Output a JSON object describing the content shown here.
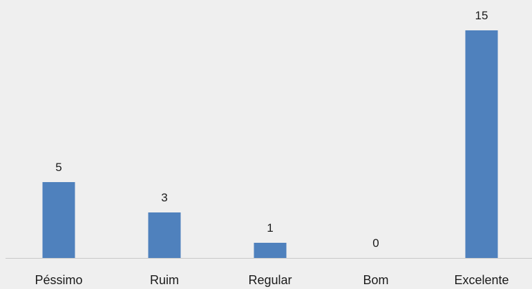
{
  "chart_data": {
    "type": "bar",
    "categories": [
      "Péssimo",
      "Ruim",
      "Regular",
      "Bom",
      "Excelente"
    ],
    "values": [
      5,
      3,
      1,
      0,
      15
    ],
    "ylim": [
      0,
      15
    ],
    "grid": false,
    "legend": "none",
    "bar_color": "#4f81bd",
    "axis_color": "#c8c8c8",
    "background": "#efefef"
  }
}
